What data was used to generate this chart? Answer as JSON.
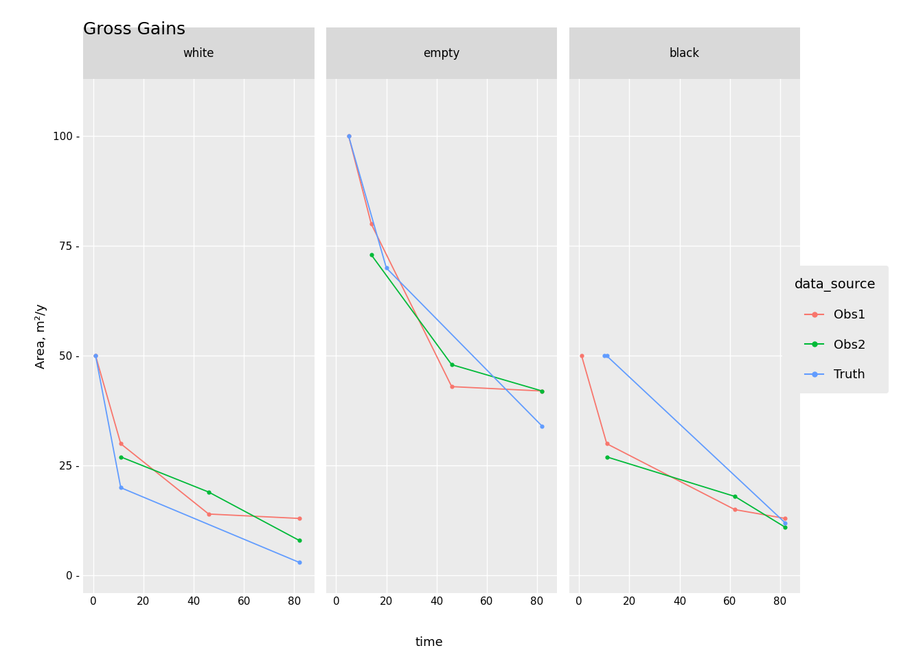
{
  "title": "Gross Gains",
  "panels": [
    "white",
    "empty",
    "black"
  ],
  "xlabel": "time",
  "ylabel": "Area, m²/y",
  "series": {
    "Obs1": {
      "color": "#F8766D",
      "data": {
        "white": {
          "x": [
            1,
            11,
            46,
            82
          ],
          "y": [
            50,
            30,
            14,
            13
          ]
        },
        "empty": {
          "x": [
            5,
            14,
            46,
            82
          ],
          "y": [
            100,
            80,
            43,
            42
          ]
        },
        "black": {
          "x": [
            1,
            11,
            62,
            82
          ],
          "y": [
            50,
            30,
            15,
            13
          ]
        }
      }
    },
    "Obs2": {
      "color": "#00BA38",
      "data": {
        "white": {
          "x": [
            11,
            46,
            82
          ],
          "y": [
            27,
            19,
            8
          ]
        },
        "empty": {
          "x": [
            14,
            46,
            82
          ],
          "y": [
            73,
            48,
            42
          ]
        },
        "black": {
          "x": [
            11,
            62,
            82
          ],
          "y": [
            27,
            18,
            11
          ]
        }
      }
    },
    "Truth": {
      "color": "#619CFF",
      "data": {
        "white": {
          "x": [
            1,
            11,
            82
          ],
          "y": [
            50,
            20,
            3
          ]
        },
        "empty": {
          "x": [
            5,
            20,
            82
          ],
          "y": [
            100,
            70,
            34
          ]
        },
        "black": {
          "x": [
            10,
            11,
            82
          ],
          "y": [
            50,
            50,
            12
          ]
        }
      }
    }
  },
  "ylim": [
    -4,
    113
  ],
  "yticks": [
    0,
    25,
    50,
    75,
    100
  ],
  "xticks": [
    0,
    20,
    40,
    60,
    80
  ],
  "xlim": [
    -4,
    88
  ],
  "panel_bg": "#EBEBEB",
  "plot_bg": "#FFFFFF",
  "grid_color": "#FFFFFF",
  "strip_bg": "#D9D9D9",
  "legend_title": "data_source",
  "legend_bg": "#EBEBEB",
  "title_fontsize": 18,
  "axis_label_fontsize": 13,
  "tick_fontsize": 11,
  "strip_fontsize": 12,
  "legend_fontsize": 13,
  "legend_title_fontsize": 14
}
